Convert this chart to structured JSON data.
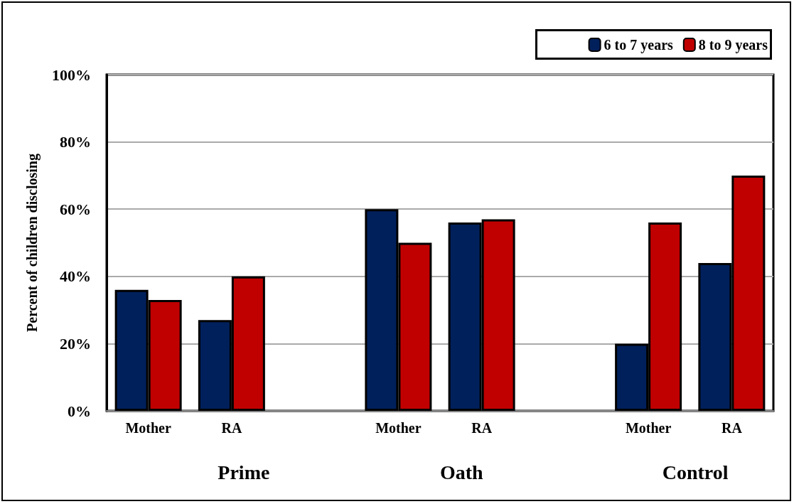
{
  "chart_data": {
    "type": "bar",
    "ylabel": "Percent of children disclosing",
    "categories": [
      "Mother",
      "RA",
      null,
      "Mother",
      "RA",
      null,
      "Mother",
      "RA"
    ],
    "series": [
      {
        "name": "6 to 7 years",
        "color": "#00205b",
        "values": [
          36,
          27,
          null,
          60,
          56,
          null,
          20,
          44
        ]
      },
      {
        "name": "8 to 9 years",
        "color": "#c00000",
        "values": [
          33,
          40,
          null,
          50,
          57,
          null,
          56,
          70
        ]
      }
    ],
    "ylim": [
      0,
      100
    ],
    "yticks": [
      {
        "value": 0,
        "label": "0%"
      },
      {
        "value": 20,
        "label": "20%"
      },
      {
        "value": 40,
        "label": "40%"
      },
      {
        "value": 60,
        "label": "60%"
      },
      {
        "value": 80,
        "label": "80%"
      },
      {
        "value": 100,
        "label": "100%"
      }
    ],
    "annotations": [
      "Prime",
      "Oath",
      "Control"
    ],
    "grid": "y",
    "legend": "top right"
  }
}
